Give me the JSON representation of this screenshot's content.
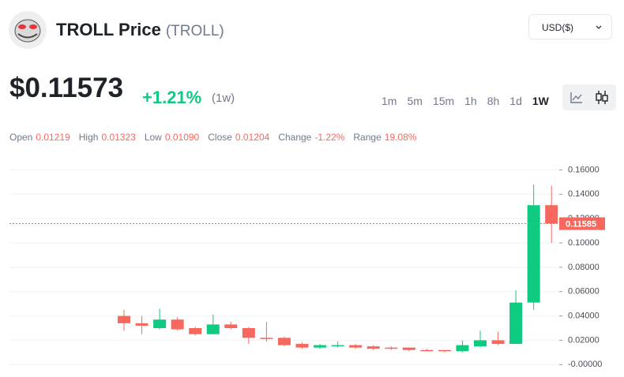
{
  "header": {
    "title": "TROLL Price",
    "symbol": "(TROLL)",
    "currency": "USD($)",
    "price": "$0.11573",
    "change": "+1.21%",
    "period": "(1w)",
    "timeframes": [
      "1m",
      "5m",
      "15m",
      "1h",
      "8h",
      "1d",
      "1W"
    ],
    "active_timeframe": 6
  },
  "stats": [
    {
      "label": "Open",
      "value": "0.01219"
    },
    {
      "label": "High",
      "value": "0.01323"
    },
    {
      "label": "Low",
      "value": "0.01090"
    },
    {
      "label": "Close",
      "value": "0.01204"
    },
    {
      "label": "Change",
      "value": "-1.22%"
    },
    {
      "label": "Range",
      "value": "19.08%"
    }
  ],
  "chart_data": {
    "type": "candlestick",
    "up_color": "#0ecb81",
    "down_color": "#f6685e",
    "grid": true,
    "open": [
      0.04,
      0.034,
      0.03,
      0.037,
      0.03,
      0.025,
      0.033,
      0.03,
      0.022,
      0.022,
      0.017,
      0.014,
      0.015,
      0.016,
      0.015,
      0.014,
      0.014,
      0.012,
      0.012,
      0.011,
      0.015,
      0.02,
      0.017,
      0.051,
      0.131
    ],
    "high": [
      0.045,
      0.04,
      0.046,
      0.039,
      0.031,
      0.041,
      0.035,
      0.031,
      0.035,
      0.023,
      0.018,
      0.017,
      0.019,
      0.017,
      0.016,
      0.015,
      0.014,
      0.013,
      0.012,
      0.02,
      0.028,
      0.027,
      0.061,
      0.148,
      0.147
    ],
    "low": [
      0.028,
      0.025,
      0.029,
      0.028,
      0.024,
      0.025,
      0.029,
      0.017,
      0.019,
      0.015,
      0.013,
      0.013,
      0.014,
      0.013,
      0.012,
      0.012,
      0.011,
      0.011,
      0.01,
      0.01,
      0.014,
      0.016,
      0.017,
      0.045,
      0.1
    ],
    "close": [
      0.034,
      0.032,
      0.037,
      0.029,
      0.025,
      0.033,
      0.03,
      0.022,
      0.021,
      0.016,
      0.014,
      0.016,
      0.016,
      0.014,
      0.013,
      0.013,
      0.012,
      0.011,
      0.011,
      0.016,
      0.02,
      0.017,
      0.051,
      0.131,
      0.116
    ],
    "ylim": [
      -0.005,
      0.17
    ],
    "yticks": [
      {
        "value": 0.16,
        "label": "0.16000"
      },
      {
        "value": 0.14,
        "label": "0.14000"
      },
      {
        "value": 0.12,
        "label": "0.12000"
      },
      {
        "value": 0.1,
        "label": "0.10000"
      },
      {
        "value": 0.08,
        "label": "0.08000"
      },
      {
        "value": 0.06,
        "label": "0.06000"
      },
      {
        "value": 0.04,
        "label": "0.04000"
      },
      {
        "value": 0.02,
        "label": "0.02000"
      },
      {
        "value": 0,
        "label": "-0.00000"
      }
    ],
    "last_price": 0.11585
  }
}
